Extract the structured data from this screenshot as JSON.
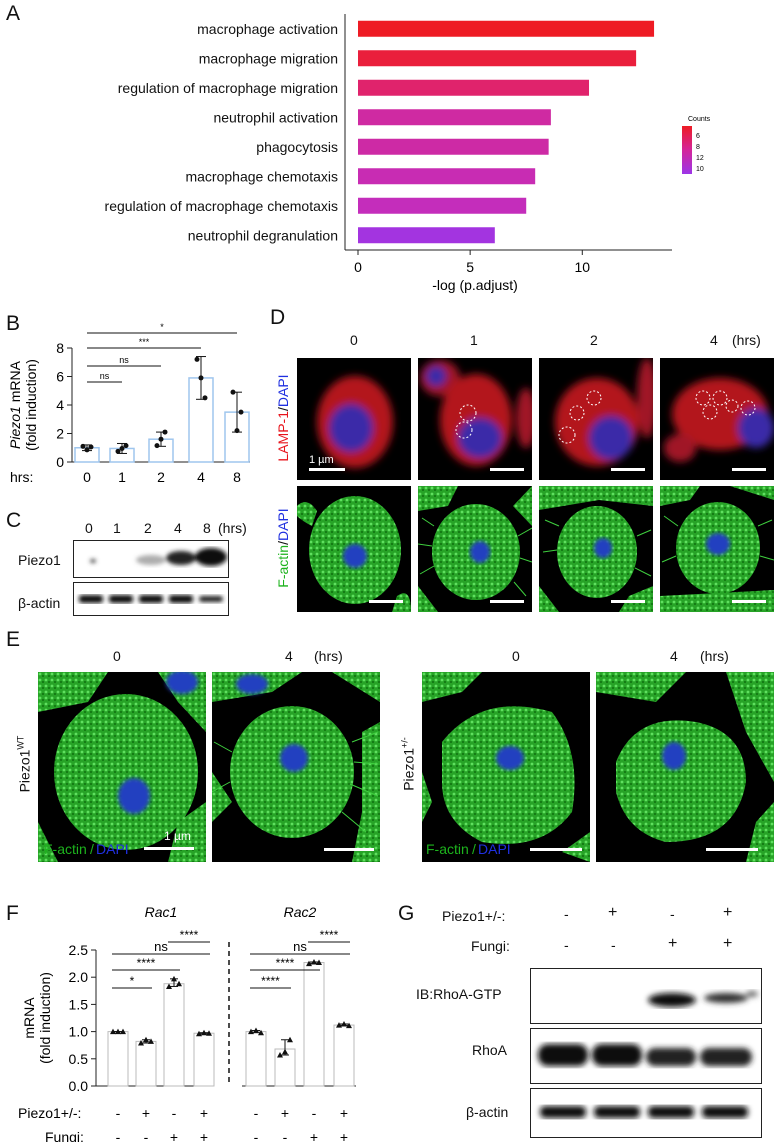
{
  "panels": {
    "A": "A",
    "B": "B",
    "C": "C",
    "D": "D",
    "E": "E",
    "F": "F",
    "G": "G"
  },
  "chart_data": [
    {
      "id": "A",
      "type": "bar",
      "orientation": "horizontal",
      "categories": [
        "macrophage activation",
        "macrophage migration",
        "regulation of macrophage migration",
        "neutrophil activation",
        "phagocytosis",
        "macrophage chemotaxis",
        "regulation of macrophage chemotaxis",
        "neutrophil degranulation"
      ],
      "values": [
        13.2,
        12.4,
        10.3,
        8.6,
        8.5,
        7.9,
        7.5,
        6.1
      ],
      "colors": [
        "#ee1b24",
        "#ea1f3c",
        "#e0236c",
        "#cf2aa2",
        "#cd2aa5",
        "#c82cb3",
        "#c42dbb",
        "#a334e0"
      ],
      "xlabel": "-log (p.adjust)",
      "xlim": [
        0,
        14
      ],
      "xticks": [
        0,
        5,
        10
      ],
      "legend": {
        "title": "Counts",
        "labels": [
          "6",
          "8",
          "12",
          "10"
        ],
        "placement": "right"
      }
    },
    {
      "id": "B",
      "type": "bar",
      "categories": [
        "0",
        "1",
        "2",
        "4",
        "8"
      ],
      "values": [
        1.0,
        0.95,
        1.6,
        5.9,
        3.5
      ],
      "errors": [
        0.2,
        0.35,
        0.5,
        1.5,
        1.4
      ],
      "points": [
        [
          1.1,
          0.85,
          1.05
        ],
        [
          0.75,
          0.95,
          1.15
        ],
        [
          1.15,
          1.6,
          2.1
        ],
        [
          7.2,
          5.9,
          4.5
        ],
        [
          4.9,
          2.2,
          3.5
        ]
      ],
      "xlabel_prefix": "hrs:",
      "ylabel_italic": "Piezo1",
      "ylabel_rest": " mRNA",
      "ylabel2": "(fold induction)",
      "ylim": [
        0,
        8
      ],
      "yticks": [
        0,
        2,
        4,
        6,
        8
      ],
      "significance": [
        {
          "from": 0,
          "to": 1,
          "label": "ns"
        },
        {
          "from": 0,
          "to": 2,
          "label": "ns"
        },
        {
          "from": 0,
          "to": 3,
          "label": "***"
        },
        {
          "from": 0,
          "to": 4,
          "label": "*"
        }
      ]
    },
    {
      "id": "F",
      "type": "bar",
      "groups": [
        "Rac1",
        "Rac2"
      ],
      "values": [
        [
          1.0,
          0.82,
          1.88,
          0.97
        ],
        [
          1.0,
          0.68,
          2.27,
          1.12
        ]
      ],
      "points": [
        [
          [
            1.0,
            1.0,
            1.0
          ],
          [
            0.79,
            0.85,
            0.82
          ],
          [
            1.83,
            1.97,
            1.88
          ],
          [
            0.96,
            0.98,
            0.97
          ]
        ],
        [
          [
            1.0,
            1.02,
            0.98
          ],
          [
            0.57,
            0.63,
            0.85
          ],
          [
            2.25,
            2.28,
            2.27
          ],
          [
            1.12,
            1.14,
            1.11
          ]
        ]
      ],
      "ylabel": "mRNA",
      "ylabel2": "(fold induction)",
      "ylim": [
        0,
        2.5
      ],
      "yticks": [
        "0.0",
        "0.5",
        "1.0",
        "1.5",
        "2.0",
        "2.5"
      ],
      "significance": [
        {
          "group": 0,
          "from": 0,
          "to": 1,
          "label": "*"
        },
        {
          "group": 0,
          "from": 0,
          "to": 2,
          "label": "****"
        },
        {
          "group": 0,
          "from": 0,
          "to": 3,
          "label": "ns"
        },
        {
          "group": 0,
          "from": 2,
          "to": 3,
          "label": "****"
        },
        {
          "group": 1,
          "from": 0,
          "to": 1,
          "label": "****"
        },
        {
          "group": 1,
          "from": 0,
          "to": 2,
          "label": "****"
        },
        {
          "group": 1,
          "from": 0,
          "to": 3,
          "label": "ns"
        },
        {
          "group": 1,
          "from": 2,
          "to": 3,
          "label": "****"
        }
      ],
      "row_labels": [
        "Piezo1+/-:",
        "Fungi:"
      ],
      "row_values": [
        [
          "-",
          "+",
          "-",
          "+",
          "-",
          "+",
          "-",
          "+"
        ],
        [
          "-",
          "-",
          "+",
          "+",
          "-",
          "-",
          "+",
          "+"
        ]
      ]
    }
  ],
  "C": {
    "times": [
      "0",
      "1",
      "2",
      "4",
      "8"
    ],
    "unit": "(hrs)",
    "rows": [
      "Piezo1",
      "β-actin"
    ]
  },
  "D": {
    "times": [
      "0",
      "1",
      "2",
      "4"
    ],
    "unit": "(hrs)",
    "row1": "LAMP-1",
    "row1b": "DAPI",
    "row2": "F-actin",
    "row2b": "DAPI",
    "scale": "1 µm",
    "slash": "/"
  },
  "E": {
    "times": [
      "0",
      "4",
      "0",
      "4"
    ],
    "unit": "(hrs)",
    "geno1": "Piezo1",
    "geno1sup": "WT",
    "geno2": "Piezo1",
    "geno2sup": "+/-",
    "overlay1": "F-actin",
    "overlay2": "DAPI",
    "scale": "1 µm",
    "slash": "/"
  },
  "G": {
    "rowlabels": [
      "Piezo1+/-:",
      "Fungi:"
    ],
    "piezo": [
      "-",
      "+",
      "-",
      "+"
    ],
    "fungi": [
      "-",
      "-",
      "+",
      "+"
    ],
    "blots": [
      "IB:RhoA-GTP",
      "RhoA",
      "β-actin"
    ]
  }
}
